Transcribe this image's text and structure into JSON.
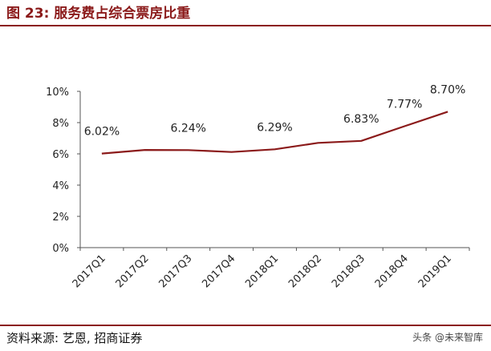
{
  "header": {
    "title": "图 23:  服务费占综合票房比重"
  },
  "footer": {
    "source": "资料来源:  艺恩,  招商证券",
    "watermark": "头条 @未来智库"
  },
  "colors": {
    "accent": "#8b1a1a",
    "line": "#8b1a1a",
    "axis": "#555555"
  },
  "chart_data": {
    "type": "line",
    "categories": [
      "2017Q1",
      "2017Q2",
      "2017Q3",
      "2017Q4",
      "2018Q1",
      "2018Q2",
      "2018Q3",
      "2018Q4",
      "2019Q1"
    ],
    "series": [
      {
        "values": [
          6.02,
          6.25,
          6.24,
          6.12,
          6.29,
          6.7,
          6.83,
          7.77,
          8.7
        ]
      }
    ],
    "data_labels": [
      {
        "index": 0,
        "text": "6.02%"
      },
      {
        "index": 2,
        "text": "6.24%"
      },
      {
        "index": 4,
        "text": "6.29%"
      },
      {
        "index": 6,
        "text": "6.83%"
      },
      {
        "index": 7,
        "text": "7.77%"
      },
      {
        "index": 8,
        "text": "8.70%"
      }
    ],
    "yticks": [
      "0%",
      "2%",
      "4%",
      "6%",
      "8%",
      "10%"
    ],
    "ylim": [
      0,
      10
    ],
    "grid": false,
    "legend": "none"
  }
}
